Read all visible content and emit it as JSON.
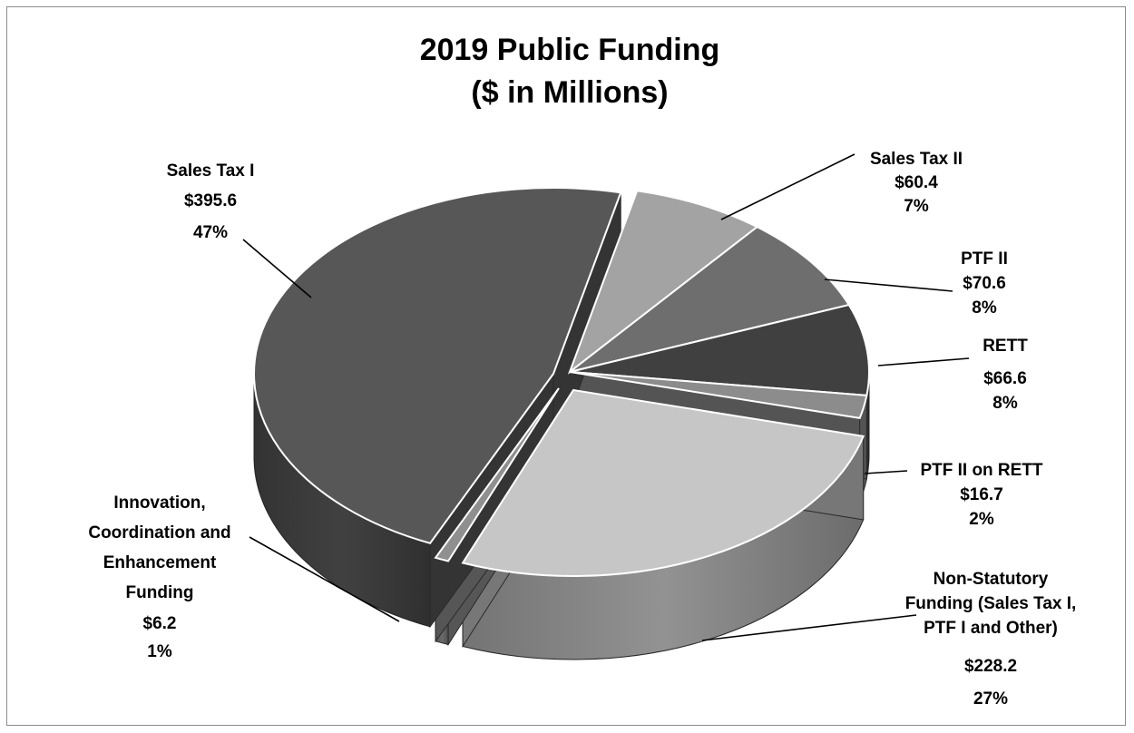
{
  "chart_data": {
    "type": "pie",
    "title": "2019 Public Funding",
    "subtitle": "($ in Millions)",
    "slices": [
      {
        "name": "Sales Tax II",
        "value": 60.4,
        "value_label": "$60.4",
        "percent_label": "7%",
        "color": "#a3a3a3"
      },
      {
        "name": "PTF II",
        "value": 70.6,
        "value_label": "$70.6",
        "percent_label": "8%",
        "color": "#6e6e6e"
      },
      {
        "name": "RETT",
        "value": 66.6,
        "value_label": "$66.6",
        "percent_label": "8%",
        "color": "#404040"
      },
      {
        "name": "PTF II on RETT",
        "value": 16.7,
        "value_label": "$16.7",
        "percent_label": "2%",
        "color": "#8c8c8c"
      },
      {
        "name": "Non-Statutory Funding (Sales Tax I, PTF I and Other)",
        "value": 228.2,
        "value_label": "$228.2",
        "percent_label": "27%",
        "color": "#c6c6c6"
      },
      {
        "name": "Innovation, Coordination and Enhancement Funding",
        "value": 6.2,
        "value_label": "$6.2",
        "percent_label": "1%",
        "color": "#8f8f8f"
      },
      {
        "name": "Sales Tax I",
        "value": 395.6,
        "value_label": "$395.6",
        "percent_label": "47%",
        "color": "#575757"
      }
    ]
  }
}
